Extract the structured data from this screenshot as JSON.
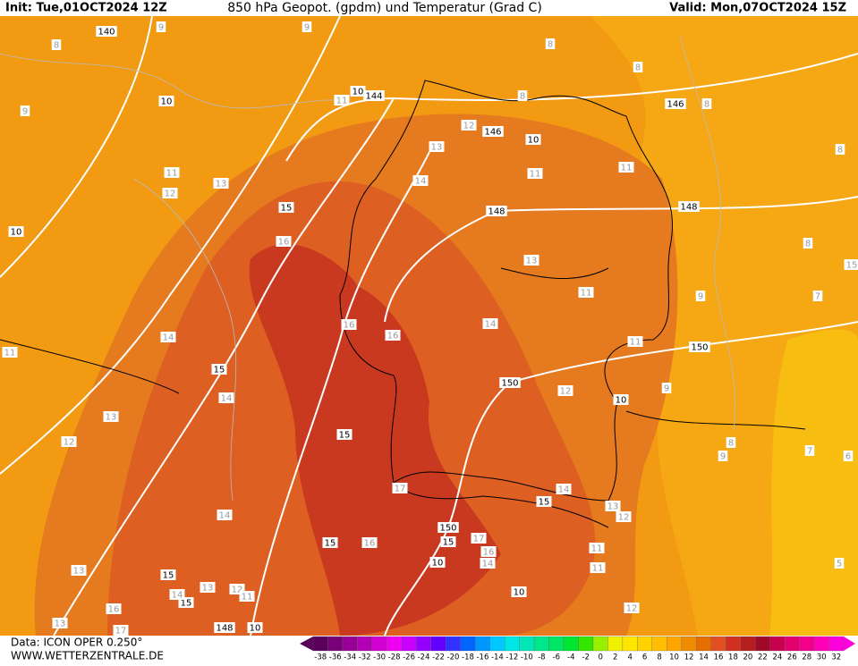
{
  "header": {
    "init": "Init: Tue,01OCT2024 12Z",
    "title": "850 hPa Geopot. (gpdm) und Temperatur (Grad C)",
    "valid": "Valid: Mon,07OCT2024 15Z"
  },
  "footer": {
    "data": "Data: ICON OPER 0.250°",
    "site": "WWW.WETTERZENTRALE.DE"
  },
  "geopotential_labels": [
    "140",
    "144",
    "146",
    "146",
    "148",
    "148",
    "150",
    "150",
    "150",
    "148"
  ],
  "isotherm_labels_black": [
    "10",
    "10",
    "10",
    "10",
    "15",
    "15",
    "15",
    "15",
    "15",
    "15",
    "15",
    "15",
    "10",
    "10",
    "10",
    "10"
  ],
  "isotherm_labels_gray": [
    "8",
    "9",
    "9",
    "9",
    "8",
    "8",
    "8",
    "8",
    "11",
    "12",
    "13",
    "11",
    "11",
    "11",
    "12",
    "13",
    "14",
    "16",
    "13",
    "11",
    "16",
    "16",
    "14",
    "14",
    "11",
    "11",
    "14",
    "12",
    "9",
    "13",
    "12",
    "8",
    "9",
    "7",
    "6",
    "17",
    "14",
    "13",
    "12",
    "14",
    "16",
    "17",
    "16",
    "14",
    "11",
    "11",
    "13",
    "13",
    "12",
    "11",
    "14",
    "16",
    "17",
    "13",
    "12",
    "5",
    "8",
    "8",
    "9",
    "7",
    "15"
  ],
  "colorbar": {
    "ticks": [
      -38,
      -36,
      -34,
      -32,
      -30,
      -28,
      -26,
      -24,
      -22,
      -20,
      -18,
      -16,
      -14,
      -12,
      -10,
      -8,
      -6,
      -4,
      -2,
      0,
      2,
      4,
      6,
      8,
      10,
      12,
      14,
      16,
      18,
      20,
      22,
      24,
      26,
      28,
      30,
      32
    ],
    "colors": [
      "#5a005a",
      "#780078",
      "#960096",
      "#b400b4",
      "#d200d2",
      "#f000f0",
      "#c800ff",
      "#9600ff",
      "#6400ff",
      "#3232ff",
      "#0064ff",
      "#0096ff",
      "#00c8ff",
      "#00e6e6",
      "#00e6b4",
      "#00e68c",
      "#00e664",
      "#00e632",
      "#32e600",
      "#96f000",
      "#f0f000",
      "#ffe600",
      "#ffd200",
      "#ffbe00",
      "#ffa500",
      "#f08c00",
      "#e66e00",
      "#e05020",
      "#d03020",
      "#b41e1e",
      "#a00a28",
      "#c80050",
      "#e6006e",
      "#f0008c",
      "#ff00b4",
      "#ff00dc"
    ]
  }
}
